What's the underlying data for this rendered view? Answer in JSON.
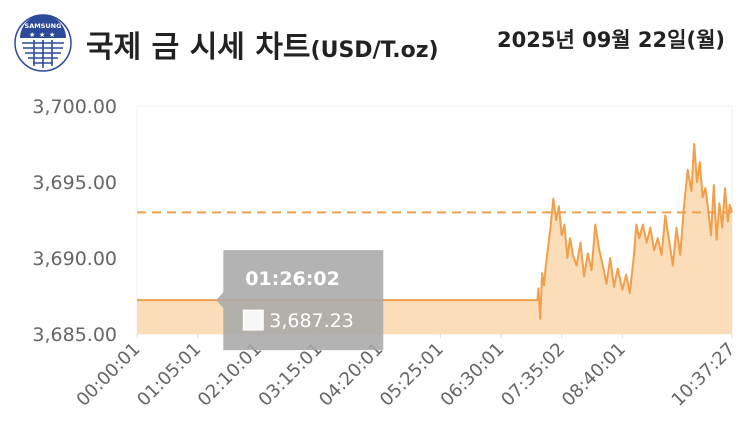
{
  "header": {
    "title": "국제 금 시세 차트",
    "unit": "(USD/T.oz)",
    "date": "2025년 09월 22일(월)",
    "logo_text": "SAMSUNG"
  },
  "colors": {
    "line": "#f0a04a",
    "fill": "#fcd7ae",
    "reference": "#f0a04a",
    "tooltip_bg": "#a9a9a9",
    "axis_text": "#666666"
  },
  "chart_data": {
    "type": "area",
    "title": "국제 금 시세 차트(USD/T.oz)",
    "xlabel": "",
    "ylabel": "",
    "ylim": [
      3685,
      3700
    ],
    "yticks": [
      "3,685.00",
      "3,690.00",
      "3,695.00",
      "3,700.00"
    ],
    "ytick_values": [
      3685,
      3690,
      3695,
      3700
    ],
    "xticks": [
      "00:00:01",
      "01:05:01",
      "02:10:01",
      "03:15:01",
      "04:20:01",
      "05:25:01",
      "06:30:01",
      "07:35:02",
      "08:40:01",
      "10:37:27"
    ],
    "x": [
      "00:00:01",
      "07:09:00",
      "07:10:00",
      "07:12:00",
      "07:14:00",
      "07:16:00",
      "07:18:00",
      "07:20:00",
      "07:23:00",
      "07:26:00",
      "07:29:00",
      "07:32:00",
      "07:35:02",
      "07:38:00",
      "07:41:00",
      "07:44:00",
      "07:47:00",
      "07:51:00",
      "07:55:00",
      "07:59:00",
      "08:03:00",
      "08:07:00",
      "08:11:00",
      "08:15:00",
      "08:19:00",
      "08:23:00",
      "08:27:00",
      "08:31:00",
      "08:35:00",
      "08:40:01",
      "08:44:00",
      "08:48:00",
      "08:52:00",
      "08:55:00",
      "08:58:00",
      "09:02:00",
      "09:06:00",
      "09:10:00",
      "09:14:00",
      "09:18:00",
      "09:22:00",
      "09:26:00",
      "09:30:00",
      "09:34:00",
      "09:38:00",
      "09:42:00",
      "09:46:00",
      "09:50:00",
      "09:54:00",
      "09:57:00",
      "10:00:00",
      "10:03:00",
      "10:06:00",
      "10:09:00",
      "10:12:00",
      "10:15:00",
      "10:18:00",
      "10:21:00",
      "10:24:00",
      "10:27:00",
      "10:30:00",
      "10:33:00",
      "10:35:00",
      "10:37:27"
    ],
    "series": [
      {
        "values": [
          3687.23,
          3687.23,
          3688.0,
          3686.0,
          3689.0,
          3688.2,
          3689.5,
          3690.5,
          3692.0,
          3693.9,
          3692.5,
          3693.4,
          3691.5,
          3692.2,
          3690.0,
          3691.3,
          3690.2,
          3689.5,
          3691.0,
          3688.8,
          3690.3,
          3689.2,
          3692.2,
          3690.6,
          3689.5,
          3688.3,
          3690.0,
          3688.1,
          3689.3,
          3687.9,
          3688.9,
          3687.7,
          3690.0,
          3692.2,
          3691.3,
          3692.2,
          3691.0,
          3692.0,
          3690.5,
          3691.3,
          3690.2,
          3692.8,
          3691.2,
          3689.5,
          3692.0,
          3690.2,
          3693.4,
          3695.8,
          3694.4,
          3697.5,
          3695.0,
          3696.3,
          3694.0,
          3694.6,
          3693.2,
          3691.5,
          3694.8,
          3691.2,
          3693.6,
          3692.0,
          3694.6,
          3692.4,
          3693.5,
          3693.0
        ]
      }
    ],
    "reference_line": 3693.0,
    "grid": false,
    "tooltip": {
      "time": "01:26:02",
      "value": "3,687.23"
    }
  }
}
